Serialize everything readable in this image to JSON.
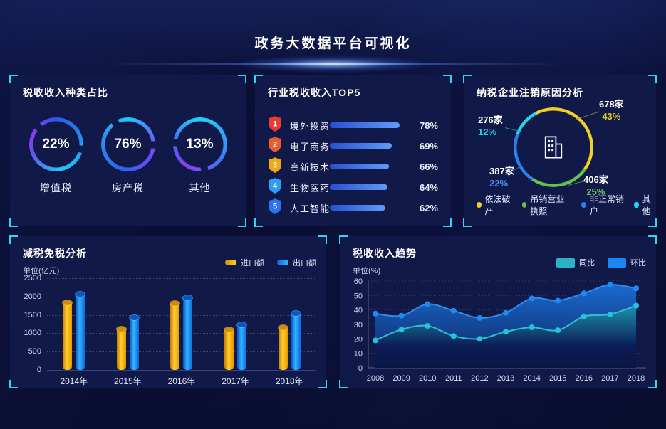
{
  "header": {
    "title": "政务大数据平台可视化"
  },
  "colors": {
    "accent_cyan": "#2ed5f7",
    "panel_bg": "#101947",
    "bar_gradient": [
      "#2a4fd0",
      "#5e9cf8"
    ],
    "import_yellow": "#f5b800",
    "export_blue": "#22a8ff",
    "tongbi_teal": "#2cb3c4",
    "huanbi_blue": "#1b87f2"
  },
  "panels": {
    "tax_type": {
      "title": "税收收入种类占比",
      "rings": [
        {
          "value": "22%",
          "label": "增值税",
          "gradient": [
            [
              "#2e56e8",
              0
            ],
            [
              "#22a8f5",
              110
            ],
            [
              "#1fc8f7",
              170
            ],
            [
              "#6653f0",
              250
            ],
            [
              "#8b3df2",
              290
            ],
            [
              "#2e56e8",
              360
            ]
          ],
          "gaps": [
            100,
            315
          ]
        },
        {
          "value": "76%",
          "label": "房产税",
          "gradient": [
            [
              "#22c7f6",
              0
            ],
            [
              "#7b46f5",
              100
            ],
            [
              "#2e63ee",
              190
            ],
            [
              "#2f8cf3",
              280
            ],
            [
              "#22c7f6",
              360
            ]
          ],
          "gaps": [
            90,
            330
          ]
        },
        {
          "value": "13%",
          "label": "其他",
          "gradient": [
            [
              "#25cdf8",
              10
            ],
            [
              "#3f7cf6",
              120
            ],
            [
              "#8a3ff2",
              210
            ],
            [
              "#4664f0",
              270
            ],
            [
              "#25cdf8",
              350
            ]
          ],
          "gaps": [
            170,
            275
          ]
        }
      ]
    },
    "industry_top5": {
      "title": "行业税收收入TOP5",
      "items": [
        {
          "rank": "1",
          "label": "境外投资",
          "value": 78,
          "value_label": "78%",
          "badge_color": "#e63c35"
        },
        {
          "rank": "2",
          "label": "电子商务",
          "value": 69,
          "value_label": "69%",
          "badge_color": "#ed5b2d"
        },
        {
          "rank": "3",
          "label": "高新技术",
          "value": 66,
          "value_label": "66%",
          "badge_color": "#f2a813"
        },
        {
          "rank": "4",
          "label": "生物医药",
          "value": 64,
          "value_label": "64%",
          "badge_color": "#2f9df2"
        },
        {
          "rank": "5",
          "label": "人工智能",
          "value": 62,
          "value_label": "62%",
          "badge_color": "#2f72ee"
        }
      ]
    },
    "cancellation": {
      "title": "纳税企业注销原因分析",
      "start_angle": -27,
      "slices": [
        {
          "name": "依法破产",
          "count": "678家",
          "pct": "43%",
          "value": 43,
          "color": "#f2d024",
          "pct_color": "#e3c61e",
          "pos": "tr"
        },
        {
          "name": "吊销营业执照",
          "count": "406家",
          "pct": "25%",
          "value": 25,
          "color": "#62c44e",
          "pct_color": "#6cc45a",
          "pos": "br"
        },
        {
          "name": "非正常销户",
          "count": "387家",
          "pct": "22%",
          "value": 22,
          "color": "#2b7ff0",
          "pct_color": "#4a90f5",
          "pos": "bl"
        },
        {
          "name": "其他",
          "count": "276家",
          "pct": "12%",
          "value": 12,
          "color": "#1fd8e8",
          "pct_color": "#25d0e8",
          "pos": "tl"
        }
      ],
      "legend": [
        {
          "name": "依法破产",
          "color": "#f2d024"
        },
        {
          "name": "吊销营业执照",
          "color": "#62c44e"
        },
        {
          "name": "非正常销户",
          "color": "#2b7ff0"
        },
        {
          "name": "其他",
          "color": "#1fd8e8"
        }
      ]
    },
    "tax_reduction": {
      "title": "减税免税分析",
      "unit": "单位(亿元)",
      "legend": [
        {
          "name": "进口额"
        },
        {
          "name": "出口额"
        }
      ]
    },
    "trend": {
      "title": "税收收入趋势",
      "unit": "单位(%)",
      "legend": [
        {
          "name": "同比"
        },
        {
          "name": "环比"
        }
      ]
    }
  },
  "chart_data": [
    {
      "type": "pie",
      "variant": "gauge-rings",
      "title": "税收收入种类占比",
      "unit": "%",
      "series": [
        {
          "name": "增值税",
          "value": 22
        },
        {
          "name": "房产税",
          "value": 76
        },
        {
          "name": "其他",
          "value": 13
        }
      ]
    },
    {
      "type": "bar",
      "orientation": "horizontal",
      "title": "行业税收收入TOP5",
      "unit": "%",
      "categories": [
        "境外投资",
        "电子商务",
        "高新技术",
        "生物医药",
        "人工智能"
      ],
      "values": [
        78,
        69,
        66,
        64,
        62
      ],
      "xlim": [
        0,
        100
      ]
    },
    {
      "type": "pie",
      "variant": "donut",
      "title": "纳税企业注销原因分析",
      "slices": [
        {
          "name": "依法破产",
          "count": 678,
          "pct": 43
        },
        {
          "name": "吊销营业执照",
          "count": 406,
          "pct": 25
        },
        {
          "name": "非正常销户",
          "count": 387,
          "pct": 22
        },
        {
          "name": "其他",
          "count": 276,
          "pct": 12
        }
      ],
      "legend_position": "bottom"
    },
    {
      "type": "bar",
      "title": "减税免税分析",
      "ylabel": "单位(亿元)",
      "ylim": [
        0,
        2500
      ],
      "ytick_step": 500,
      "grid": "dotted",
      "categories": [
        "2014年",
        "2015年",
        "2016年",
        "2017年",
        "2018年"
      ],
      "series": [
        {
          "name": "进口额",
          "values": [
            1850,
            1130,
            1820,
            1100,
            1170
          ]
        },
        {
          "name": "出口额",
          "values": [
            2080,
            1430,
            1980,
            1250,
            1560
          ]
        }
      ],
      "legend_position": "top-right"
    },
    {
      "type": "area",
      "title": "税收收入趋势",
      "ylabel": "单位(%)",
      "ylim": [
        0,
        60
      ],
      "ytick_step": 10,
      "grid": "dotted",
      "x": [
        2008,
        2009,
        2010,
        2011,
        2012,
        2013,
        2014,
        2015,
        2016,
        2017,
        2018
      ],
      "series": [
        {
          "name": "同比",
          "values": [
            19,
            26.5,
            29,
            22,
            20,
            25,
            28,
            26,
            35.5,
            37,
            43
          ]
        },
        {
          "name": "环比",
          "values": [
            37.5,
            36,
            44,
            39.5,
            34.5,
            38,
            48,
            46.5,
            51.5,
            57.5,
            55
          ]
        }
      ],
      "legend_position": "top-right"
    }
  ]
}
